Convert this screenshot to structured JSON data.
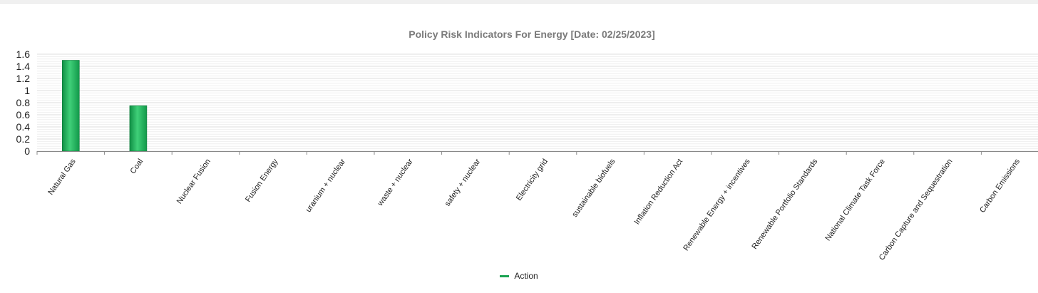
{
  "chart_data": {
    "type": "bar",
    "title": "Policy Risk Indicators For Energy [Date: 02/25/2023]",
    "xlabel": "",
    "ylabel": "",
    "ylim": [
      0,
      1.6
    ],
    "yticks": [
      0,
      0.2,
      0.4,
      0.6,
      0.8,
      1,
      1.2,
      1.4,
      1.6
    ],
    "ytick_labels": [
      "0",
      "0.2",
      "0.4",
      "0.6",
      "0.8",
      "1",
      "1.2",
      "1.4",
      "1.6"
    ],
    "grid": true,
    "categories": [
      "Natural Gas",
      "Coal",
      "Nuclear Fusion",
      "Fusion Energy",
      "uranium + nuclear",
      "waste + nuclear",
      "safety + nuclear",
      "Electricity grid",
      "sustainable biofuels",
      "Inflation Reduction Act",
      "Renewable Energy + incentives",
      "Renewable Portfolio Standards",
      "National Climate Task Force",
      "Carbon Capture and Sequestration",
      "Carbon Emissions"
    ],
    "series": [
      {
        "name": "Action",
        "color": "#1aa351",
        "values": [
          1.5,
          0.75,
          0,
          0,
          0,
          0,
          0,
          0,
          0,
          0,
          0,
          0,
          0,
          0,
          0
        ]
      }
    ],
    "legend_position": "bottom-center"
  }
}
